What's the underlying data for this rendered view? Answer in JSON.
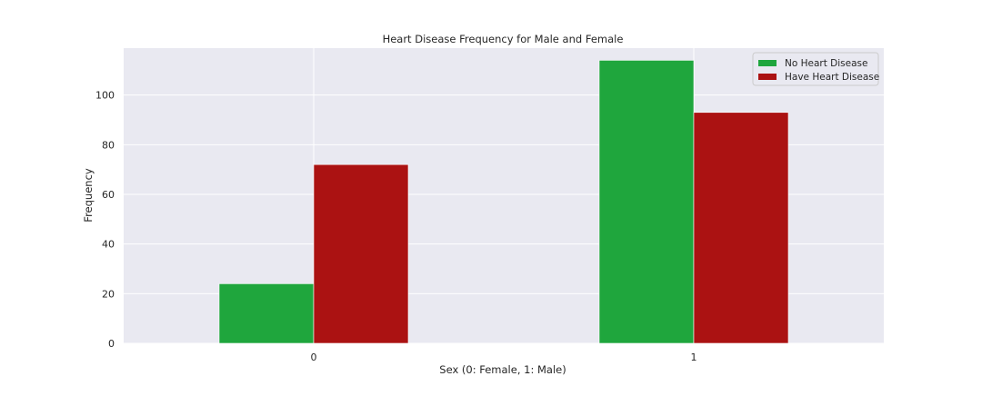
{
  "chart_data": {
    "type": "bar",
    "title": "Heart Disease Frequency for Male and Female",
    "xlabel": "Sex (0: Female, 1: Male)",
    "ylabel": "Frequency",
    "categories": [
      "0",
      "1"
    ],
    "series": [
      {
        "name": "No Heart Disease",
        "values": [
          24,
          114
        ],
        "color": "#1fa63d"
      },
      {
        "name": "Have Heart Disease",
        "values": [
          72,
          93
        ],
        "color": "#ab1212"
      }
    ],
    "ylim": [
      0,
      118.9
    ],
    "yticks": [
      0,
      20,
      40,
      60,
      80,
      100
    ],
    "grid": true,
    "legend_position": "top-right",
    "background_color": "#e9e9f1",
    "grid_color": "#ffffff"
  }
}
